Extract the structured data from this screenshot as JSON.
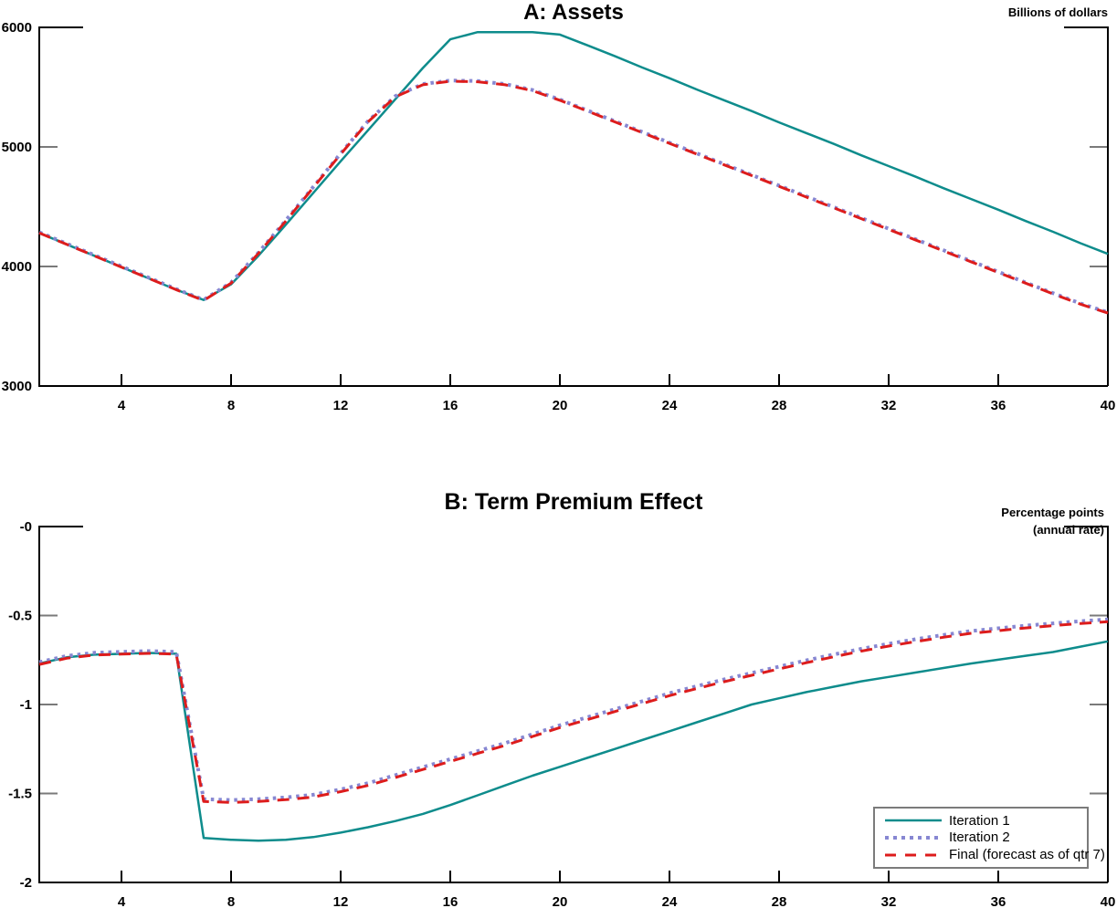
{
  "chart_data": [
    {
      "type": "line",
      "title": "A: Assets",
      "unit_label": "Billions of dollars",
      "xlabel": "",
      "ylabel": "",
      "x_start": 1,
      "x_step": 1,
      "xlim": [
        1,
        40
      ],
      "ylim": [
        3000,
        6000
      ],
      "grid": false,
      "x_tick_values": [
        4,
        8,
        12,
        16,
        20,
        24,
        28,
        32,
        36,
        40
      ],
      "x_tick_labels": [
        "4",
        "8",
        "12",
        "16",
        "20",
        "24",
        "28",
        "32",
        "36",
        "40"
      ],
      "y_tick_values": [
        3000,
        4000,
        5000,
        6000
      ],
      "y_tick_labels": [
        "3000",
        "4000",
        "5000",
        "6000"
      ],
      "series": [
        {
          "name": "Iteration 1",
          "color": "#0e8c8c",
          "line_style": "solid",
          "values": [
            4280,
            4185,
            4090,
            3995,
            3900,
            3805,
            3720,
            3850,
            4090,
            4350,
            4615,
            4880,
            5140,
            5400,
            5660,
            5900,
            5960,
            5960,
            5960,
            5940,
            5850,
            5760,
            5665,
            5575,
            5480,
            5390,
            5300,
            5205,
            5115,
            5025,
            4930,
            4840,
            4750,
            4655,
            4565,
            4475,
            4380,
            4290,
            4195,
            4105
          ]
        },
        {
          "name": "Iteration 2",
          "color": "#8787d2",
          "line_style": "dotted",
          "values": [
            4286,
            4191,
            4096,
            4001,
            3906,
            3811,
            3721,
            3866,
            4116,
            4386,
            4666,
            4946,
            5216,
            5426,
            5526,
            5556,
            5551,
            5526,
            5476,
            5396,
            5306,
            5216,
            5126,
            5036,
            4946,
            4856,
            4766,
            4676,
            4586,
            4496,
            4406,
            4316,
            4226,
            4136,
            4046,
            3956,
            3866,
            3776,
            3691,
            3616
          ]
        },
        {
          "name": "Final (forecast as of qtr 7)",
          "color": "#dd1c1c",
          "line_style": "dashed",
          "values": [
            4280,
            4185,
            4090,
            3995,
            3900,
            3805,
            3715,
            3860,
            4110,
            4380,
            4660,
            4940,
            5210,
            5420,
            5520,
            5550,
            5545,
            5520,
            5470,
            5390,
            5300,
            5210,
            5120,
            5030,
            4940,
            4850,
            4760,
            4670,
            4580,
            4490,
            4400,
            4310,
            4220,
            4130,
            4040,
            3950,
            3860,
            3770,
            3685,
            3610
          ]
        }
      ]
    },
    {
      "type": "line",
      "title": "B: Term Premium Effect",
      "unit_label": "Percentage points",
      "unit_label_2": "(annual rate)",
      "xlabel": "",
      "ylabel": "",
      "x_start": 1,
      "x_step": 1,
      "xlim": [
        1,
        40
      ],
      "ylim": [
        -2,
        0
      ],
      "grid": false,
      "x_tick_values": [
        4,
        8,
        12,
        16,
        20,
        24,
        28,
        32,
        36,
        40
      ],
      "x_tick_labels": [
        "4",
        "8",
        "12",
        "16",
        "20",
        "24",
        "28",
        "32",
        "36",
        "40"
      ],
      "y_tick_values": [
        -2,
        -1.5,
        -1,
        -0.5,
        0
      ],
      "y_tick_labels": [
        "-2",
        "-1.5",
        "-1",
        "-0.5",
        "-0"
      ],
      "series": [
        {
          "name": "Iteration 1",
          "color": "#0e8c8c",
          "line_style": "solid",
          "values": [
            -0.77,
            -0.735,
            -0.72,
            -0.715,
            -0.71,
            -0.715,
            -1.75,
            -1.76,
            -1.765,
            -1.76,
            -1.745,
            -1.72,
            -1.69,
            -1.655,
            -1.615,
            -1.565,
            -1.51,
            -1.455,
            -1.4,
            -1.35,
            -1.3,
            -1.25,
            -1.2,
            -1.15,
            -1.1,
            -1.05,
            -1.0,
            -0.965,
            -0.93,
            -0.9,
            -0.87,
            -0.845,
            -0.82,
            -0.795,
            -0.77,
            -0.748,
            -0.726,
            -0.705,
            -0.675,
            -0.645
          ]
        },
        {
          "name": "Iteration 2",
          "color": "#8787d2",
          "line_style": "dotted",
          "values": [
            -0.762,
            -0.727,
            -0.709,
            -0.704,
            -0.7,
            -0.704,
            -1.532,
            -1.537,
            -1.532,
            -1.522,
            -1.507,
            -1.477,
            -1.442,
            -1.397,
            -1.352,
            -1.307,
            -1.262,
            -1.217,
            -1.167,
            -1.117,
            -1.072,
            -1.027,
            -0.982,
            -0.937,
            -0.897,
            -0.859,
            -0.823,
            -0.787,
            -0.752,
            -0.719,
            -0.687,
            -0.659,
            -0.633,
            -0.609,
            -0.587,
            -0.572,
            -0.557,
            -0.544,
            -0.532,
            -0.522
          ]
        },
        {
          "name": "Final (forecast as of qtr 7)",
          "color": "#dd1c1c",
          "line_style": "dashed",
          "values": [
            -0.775,
            -0.74,
            -0.722,
            -0.717,
            -0.713,
            -0.717,
            -1.545,
            -1.55,
            -1.545,
            -1.535,
            -1.52,
            -1.49,
            -1.455,
            -1.41,
            -1.365,
            -1.32,
            -1.275,
            -1.23,
            -1.18,
            -1.13,
            -1.085,
            -1.04,
            -0.995,
            -0.95,
            -0.91,
            -0.872,
            -0.836,
            -0.8,
            -0.765,
            -0.732,
            -0.7,
            -0.672,
            -0.646,
            -0.622,
            -0.6,
            -0.585,
            -0.57,
            -0.557,
            -0.545,
            -0.535
          ]
        }
      ]
    }
  ],
  "legend": {
    "position": "bottom-right",
    "items": [
      "Iteration 1",
      "Iteration 2",
      "Final (forecast as of qtr 7)"
    ]
  }
}
